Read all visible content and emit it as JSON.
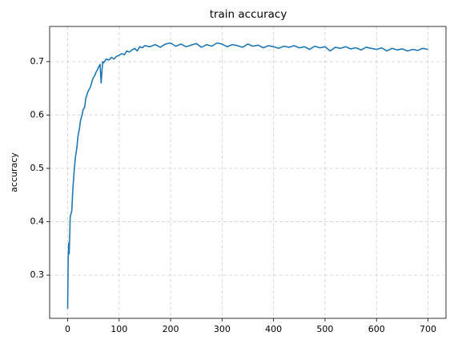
{
  "chart_data": {
    "type": "line",
    "title": "train accuracy",
    "y_label": "accuracy",
    "x": [
      0,
      1,
      2,
      3,
      5,
      8,
      10,
      13,
      15,
      18,
      20,
      23,
      25,
      28,
      30,
      33,
      35,
      38,
      40,
      43,
      45,
      48,
      50,
      53,
      55,
      58,
      60,
      63,
      65,
      68,
      70,
      75,
      80,
      85,
      90,
      95,
      100,
      105,
      110,
      115,
      120,
      125,
      130,
      135,
      140,
      145,
      150,
      160,
      170,
      180,
      190,
      200,
      210,
      220,
      230,
      240,
      250,
      260,
      270,
      280,
      290,
      300,
      310,
      320,
      330,
      340,
      350,
      360,
      370,
      380,
      390,
      400,
      410,
      420,
      430,
      440,
      450,
      460,
      470,
      480,
      490,
      500,
      510,
      520,
      530,
      540,
      550,
      560,
      570,
      580,
      590,
      600,
      610,
      620,
      630,
      640,
      650,
      660,
      670,
      680,
      690,
      700
    ],
    "series": [
      {
        "name": "train accuracy",
        "color": "#1f77b4",
        "values": [
          0.237,
          0.33,
          0.36,
          0.34,
          0.41,
          0.42,
          0.46,
          0.5,
          0.52,
          0.54,
          0.56,
          0.575,
          0.59,
          0.6,
          0.61,
          0.615,
          0.63,
          0.64,
          0.645,
          0.65,
          0.655,
          0.665,
          0.67,
          0.675,
          0.68,
          0.685,
          0.69,
          0.695,
          0.66,
          0.7,
          0.698,
          0.705,
          0.703,
          0.708,
          0.705,
          0.71,
          0.712,
          0.715,
          0.713,
          0.72,
          0.718,
          0.722,
          0.725,
          0.72,
          0.728,
          0.726,
          0.73,
          0.728,
          0.732,
          0.727,
          0.733,
          0.735,
          0.729,
          0.733,
          0.728,
          0.731,
          0.734,
          0.727,
          0.732,
          0.729,
          0.735,
          0.733,
          0.728,
          0.732,
          0.73,
          0.727,
          0.733,
          0.729,
          0.731,
          0.726,
          0.73,
          0.728,
          0.725,
          0.729,
          0.727,
          0.73,
          0.726,
          0.728,
          0.723,
          0.729,
          0.726,
          0.728,
          0.72,
          0.727,
          0.725,
          0.728,
          0.724,
          0.726,
          0.722,
          0.727,
          0.725,
          0.723,
          0.726,
          0.72,
          0.725,
          0.722,
          0.724,
          0.72,
          0.723,
          0.721,
          0.725,
          0.723
        ]
      }
    ],
    "xlim": [
      -35,
      735
    ],
    "ylim": [
      0.219,
      0.766
    ],
    "xticks": [
      0,
      100,
      200,
      300,
      400,
      500,
      600,
      700
    ],
    "yticks": [
      0.3,
      0.4,
      0.5,
      0.6,
      0.7
    ],
    "grid": true
  }
}
